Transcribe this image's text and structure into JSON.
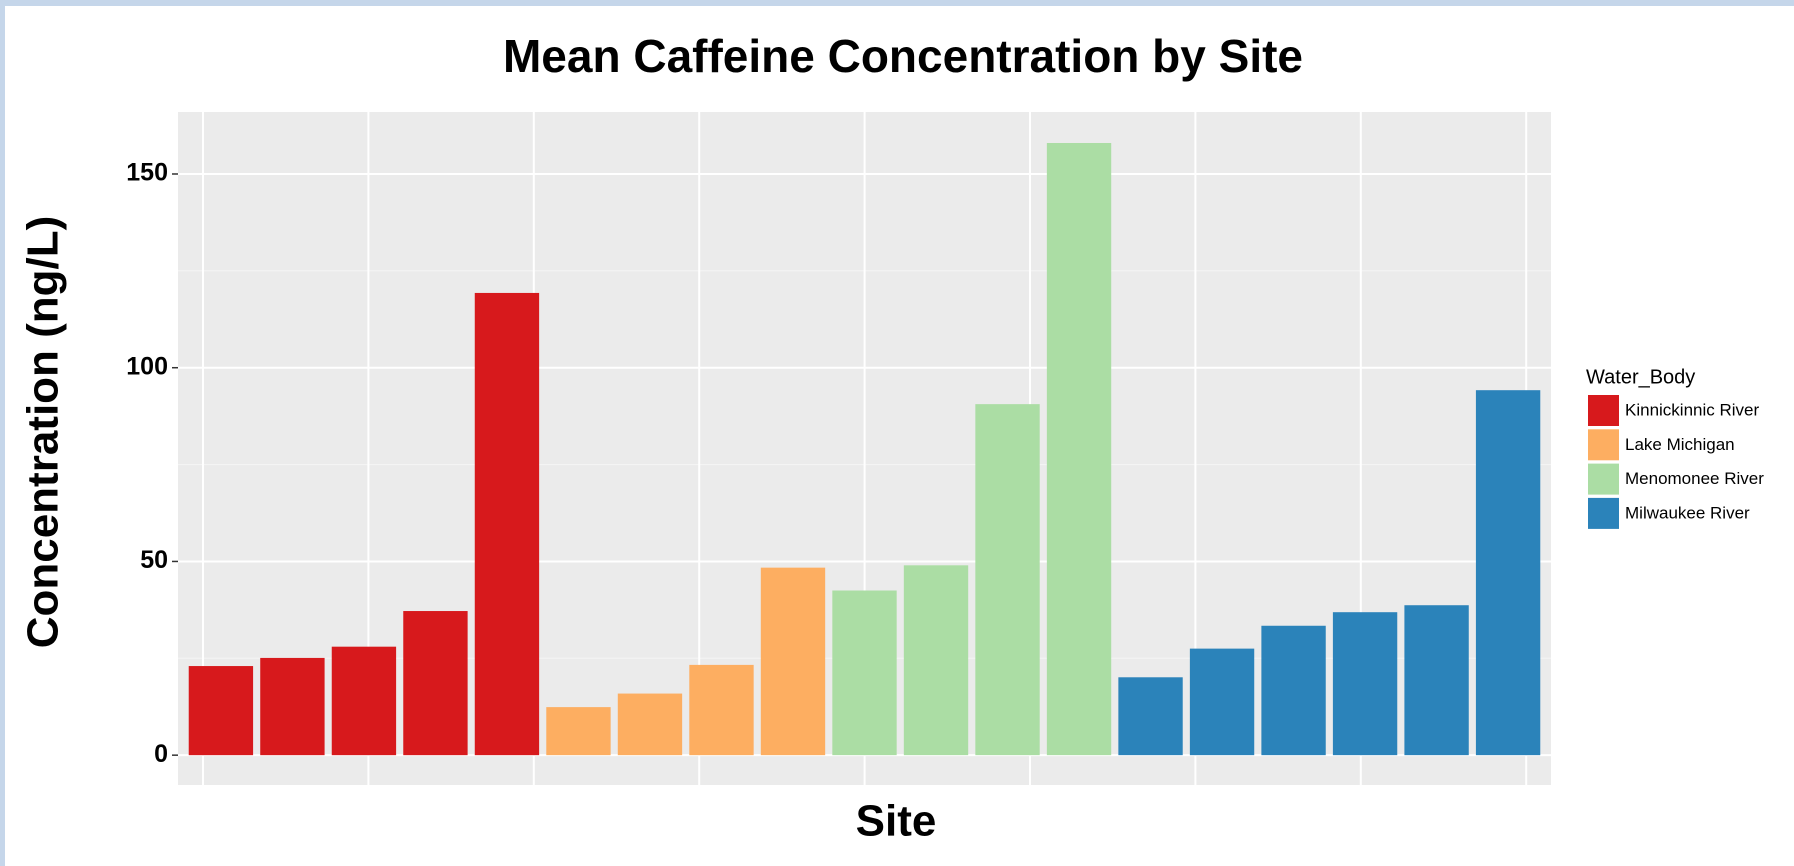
{
  "chart_data": {
    "type": "bar",
    "title": "Mean Caffeine Concentration by Site",
    "x_label": "Site",
    "y_label": "Concentration (ng/L)",
    "legend_title": "Water_Body",
    "legend_position": "right",
    "grid": true,
    "categories": [
      null,
      null,
      null,
      null,
      null,
      null,
      null,
      null,
      null,
      null,
      null,
      null,
      null,
      null,
      null,
      null,
      null,
      null,
      null
    ],
    "series": [
      {
        "name": "Kinnickinnic River",
        "color": "#d7191c",
        "values": [
          23.0,
          25.1,
          28.0,
          37.2,
          119.3,
          null,
          null,
          null,
          null,
          null,
          null,
          null,
          null,
          null,
          null,
          null,
          null,
          null,
          null
        ]
      },
      {
        "name": "Lake Michigan",
        "color": "#fdae61",
        "values": [
          null,
          null,
          null,
          null,
          null,
          12.4,
          15.9,
          23.3,
          48.4,
          null,
          null,
          null,
          null,
          null,
          null,
          null,
          null,
          null,
          null
        ]
      },
      {
        "name": "Menomonee River",
        "color": "#abdda4",
        "values": [
          null,
          null,
          null,
          null,
          null,
          null,
          null,
          null,
          null,
          42.5,
          49.0,
          90.6,
          158.0,
          null,
          null,
          null,
          null,
          null,
          null
        ]
      },
      {
        "name": "Milwaukee River",
        "color": "#2b83ba",
        "values": [
          null,
          null,
          null,
          null,
          null,
          null,
          null,
          null,
          null,
          null,
          null,
          null,
          null,
          20.1,
          27.5,
          33.4,
          36.9,
          38.7,
          94.2
        ]
      }
    ],
    "ylim": [
      -7.7,
      166
    ],
    "yticks": [
      0,
      50,
      100,
      150
    ]
  }
}
